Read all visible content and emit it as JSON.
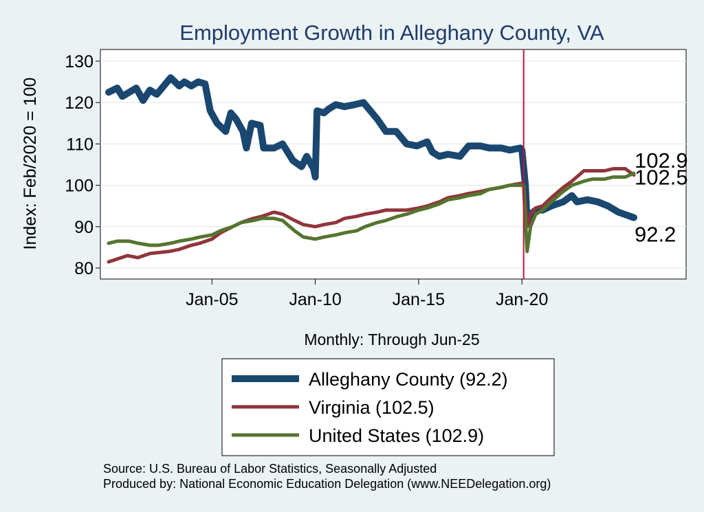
{
  "chart_data": {
    "type": "line",
    "title": "Employment Growth in Alleghany  County, VA",
    "xlabel": "Monthly: Through Jun-25",
    "ylabel": "Index: Feb/2020 = 100",
    "x_range": [
      "Jan-2000",
      "Jun-2025"
    ],
    "ylim": [
      78,
      133
    ],
    "x_ticks": [
      {
        "date": "2005-01",
        "label": "Jan-05"
      },
      {
        "date": "2010-01",
        "label": "Jan-10"
      },
      {
        "date": "2015-01",
        "label": "Jan-15"
      },
      {
        "date": "2020-01",
        "label": "Jan-20"
      }
    ],
    "y_ticks": [
      80,
      90,
      100,
      110,
      120,
      130
    ],
    "grid": true,
    "reference_line": {
      "date": "2020-02",
      "color": "#C0143C"
    },
    "legend_position": "bottom",
    "series": [
      {
        "name": "Alleghany  County (92.2)",
        "color": "#1A476F",
        "end_label": "92.2",
        "points": [
          [
            "2000-01",
            122.5
          ],
          [
            "2000-06",
            123.5
          ],
          [
            "2000-09",
            121.5
          ],
          [
            "2001-01",
            122.5
          ],
          [
            "2001-05",
            123.5
          ],
          [
            "2001-09",
            120.5
          ],
          [
            "2002-01",
            123
          ],
          [
            "2002-05",
            122
          ],
          [
            "2002-09",
            124
          ],
          [
            "2003-01",
            126
          ],
          [
            "2003-06",
            124
          ],
          [
            "2003-09",
            125
          ],
          [
            "2004-01",
            124
          ],
          [
            "2004-05",
            125
          ],
          [
            "2004-09",
            124.5
          ],
          [
            "2004-12",
            118
          ],
          [
            "2005-04",
            115
          ],
          [
            "2005-09",
            113
          ],
          [
            "2005-12",
            117.5
          ],
          [
            "2006-03",
            116
          ],
          [
            "2006-07",
            113
          ],
          [
            "2006-09",
            109
          ],
          [
            "2006-12",
            115
          ],
          [
            "2007-05",
            114.5
          ],
          [
            "2007-07",
            109
          ],
          [
            "2008-01",
            109
          ],
          [
            "2008-06",
            110
          ],
          [
            "2008-12",
            106
          ],
          [
            "2009-05",
            104.5
          ],
          [
            "2009-08",
            107
          ],
          [
            "2009-12",
            104
          ],
          [
            "2010-01",
            102
          ],
          [
            "2010-02",
            118
          ],
          [
            "2010-06",
            117.5
          ],
          [
            "2010-09",
            118.5
          ],
          [
            "2011-01",
            119.5
          ],
          [
            "2011-06",
            119
          ],
          [
            "2011-12",
            119.5
          ],
          [
            "2012-05",
            120
          ],
          [
            "2012-09",
            118
          ],
          [
            "2013-01",
            116
          ],
          [
            "2013-06",
            113
          ],
          [
            "2013-12",
            113
          ],
          [
            "2014-06",
            110
          ],
          [
            "2014-12",
            109.5
          ],
          [
            "2015-06",
            110.5
          ],
          [
            "2015-09",
            108
          ],
          [
            "2016-01",
            107
          ],
          [
            "2016-06",
            107.5
          ],
          [
            "2017-01",
            107
          ],
          [
            "2017-06",
            109.5
          ],
          [
            "2018-01",
            109.5
          ],
          [
            "2018-06",
            109
          ],
          [
            "2019-01",
            109
          ],
          [
            "2019-06",
            108.5
          ],
          [
            "2019-12",
            109
          ],
          [
            "2020-01",
            108.5
          ],
          [
            "2020-03",
            100
          ],
          [
            "2020-04",
            91
          ],
          [
            "2020-06",
            93
          ],
          [
            "2020-09",
            94
          ],
          [
            "2021-01",
            94
          ],
          [
            "2021-06",
            95
          ],
          [
            "2022-01",
            96
          ],
          [
            "2022-06",
            97.5
          ],
          [
            "2022-09",
            96
          ],
          [
            "2023-03",
            96.5
          ],
          [
            "2023-09",
            96
          ],
          [
            "2024-03",
            95
          ],
          [
            "2024-09",
            93.5
          ],
          [
            "2025-06",
            92.2
          ]
        ]
      },
      {
        "name": "Virginia (102.5)",
        "color": "#90353B",
        "end_label": "102.5",
        "points": [
          [
            "2000-01",
            81.5
          ],
          [
            "2000-12",
            83
          ],
          [
            "2001-06",
            82.5
          ],
          [
            "2002-01",
            83.5
          ],
          [
            "2002-12",
            84
          ],
          [
            "2003-06",
            84.5
          ],
          [
            "2004-01",
            85.5
          ],
          [
            "2004-06",
            86
          ],
          [
            "2005-01",
            87
          ],
          [
            "2005-06",
            88.5
          ],
          [
            "2006-01",
            90
          ],
          [
            "2006-06",
            91
          ],
          [
            "2007-01",
            92
          ],
          [
            "2007-06",
            92.5
          ],
          [
            "2008-01",
            93.5
          ],
          [
            "2008-06",
            93
          ],
          [
            "2009-01",
            91.5
          ],
          [
            "2009-06",
            90.5
          ],
          [
            "2010-01",
            90
          ],
          [
            "2010-06",
            90.5
          ],
          [
            "2011-01",
            91
          ],
          [
            "2011-06",
            92
          ],
          [
            "2012-01",
            92.5
          ],
          [
            "2012-06",
            93
          ],
          [
            "2013-01",
            93.5
          ],
          [
            "2013-06",
            94
          ],
          [
            "2014-01",
            94
          ],
          [
            "2014-06",
            94
          ],
          [
            "2015-01",
            94.5
          ],
          [
            "2015-06",
            95
          ],
          [
            "2016-01",
            96
          ],
          [
            "2016-06",
            97
          ],
          [
            "2017-01",
            97.5
          ],
          [
            "2017-06",
            98
          ],
          [
            "2018-01",
            98.5
          ],
          [
            "2018-06",
            99
          ],
          [
            "2019-01",
            99.5
          ],
          [
            "2019-06",
            100
          ],
          [
            "2020-01",
            100.5
          ],
          [
            "2020-02",
            100
          ],
          [
            "2020-04",
            90
          ],
          [
            "2020-06",
            93
          ],
          [
            "2020-09",
            94.5
          ],
          [
            "2021-01",
            95
          ],
          [
            "2021-06",
            97
          ],
          [
            "2022-01",
            99.5
          ],
          [
            "2022-06",
            101
          ],
          [
            "2023-01",
            103.5
          ],
          [
            "2023-06",
            103.5
          ],
          [
            "2024-01",
            103.5
          ],
          [
            "2024-06",
            104
          ],
          [
            "2025-01",
            104
          ],
          [
            "2025-06",
            102.5
          ]
        ]
      },
      {
        "name": "United States (102.9)",
        "color": "#55752F",
        "end_label": "102.9",
        "points": [
          [
            "2000-01",
            86
          ],
          [
            "2000-06",
            86.5
          ],
          [
            "2001-01",
            86.5
          ],
          [
            "2001-06",
            86
          ],
          [
            "2002-01",
            85.5
          ],
          [
            "2002-06",
            85.5
          ],
          [
            "2003-01",
            86
          ],
          [
            "2003-06",
            86.5
          ],
          [
            "2004-01",
            87
          ],
          [
            "2004-06",
            87.5
          ],
          [
            "2005-01",
            88
          ],
          [
            "2005-06",
            89
          ],
          [
            "2006-01",
            90
          ],
          [
            "2006-06",
            91
          ],
          [
            "2007-01",
            91.5
          ],
          [
            "2007-06",
            92
          ],
          [
            "2008-01",
            92
          ],
          [
            "2008-06",
            91.5
          ],
          [
            "2009-01",
            89
          ],
          [
            "2009-06",
            87.5
          ],
          [
            "2010-01",
            87
          ],
          [
            "2010-06",
            87.5
          ],
          [
            "2011-01",
            88
          ],
          [
            "2011-06",
            88.5
          ],
          [
            "2012-01",
            89
          ],
          [
            "2012-06",
            90
          ],
          [
            "2013-01",
            91
          ],
          [
            "2013-06",
            91.5
          ],
          [
            "2014-01",
            92.5
          ],
          [
            "2014-06",
            93
          ],
          [
            "2015-01",
            94
          ],
          [
            "2015-06",
            94.5
          ],
          [
            "2016-01",
            95.5
          ],
          [
            "2016-06",
            96.5
          ],
          [
            "2017-01",
            97
          ],
          [
            "2017-06",
            97.5
          ],
          [
            "2018-01",
            98
          ],
          [
            "2018-06",
            99
          ],
          [
            "2019-01",
            99.5
          ],
          [
            "2019-06",
            100
          ],
          [
            "2020-01",
            100
          ],
          [
            "2020-02",
            100
          ],
          [
            "2020-04",
            84
          ],
          [
            "2020-06",
            90
          ],
          [
            "2020-09",
            93
          ],
          [
            "2021-01",
            94
          ],
          [
            "2021-06",
            96
          ],
          [
            "2022-01",
            98.5
          ],
          [
            "2022-06",
            100
          ],
          [
            "2023-01",
            101
          ],
          [
            "2023-06",
            101.5
          ],
          [
            "2024-01",
            101.5
          ],
          [
            "2024-06",
            102
          ],
          [
            "2025-01",
            102
          ],
          [
            "2025-06",
            102.9
          ]
        ]
      }
    ]
  },
  "source_lines": [
    "Source: U.S. Bureau of Labor Statistics, Seasonally Adjusted",
    "Produced by: National Economic Education Delegation (www.NEEDelegation.org)"
  ]
}
